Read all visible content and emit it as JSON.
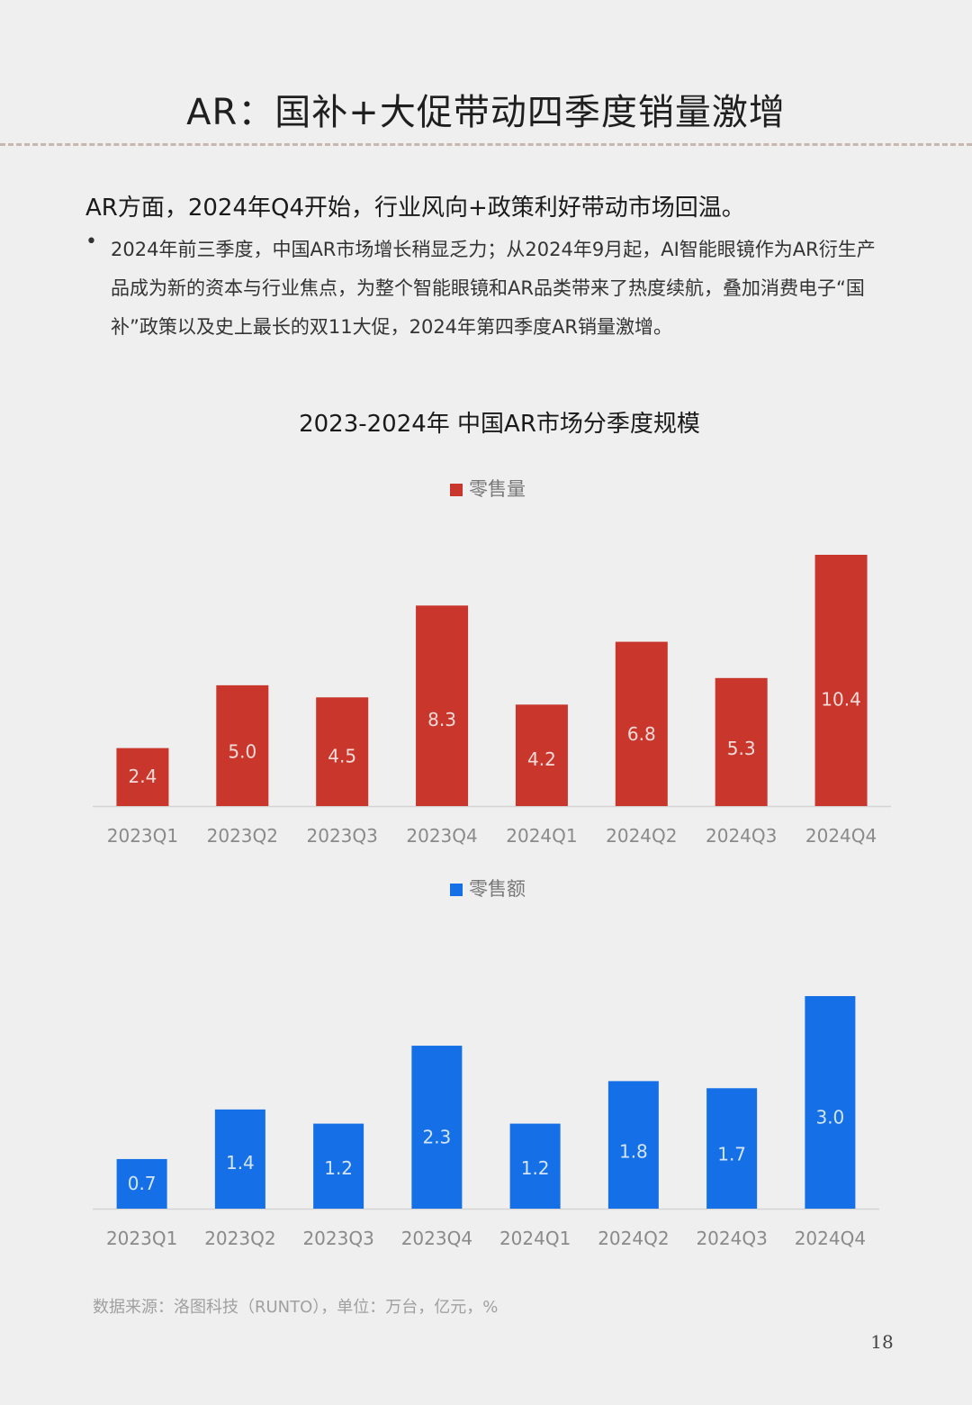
{
  "page": {
    "title": "AR：国补+大促带动四季度销量激增",
    "headline": "AR方面，2024年Q4开始，行业风向+政策利好带动市场回温。",
    "bullet_marker": "•",
    "bullet": "2024年前三季度，中国AR市场增长稍显乏力；从2024年9月起，AI智能眼镜作为AR衍生产品成为新的资本与行业焦点，为整个智能眼镜和AR品类带来了热度续航，叠加消费电子“国补”政策以及史上最长的双11大促，2024年第四季度AR销量激增。",
    "chart_title": "2023-2024年 中国AR市场分季度规模",
    "source": "数据来源：洛图科技（RUNTO），单位：万台，亿元，%",
    "page_number": "18"
  },
  "chart_data": [
    {
      "type": "bar",
      "categories": [
        "2023Q1",
        "2023Q2",
        "2023Q3",
        "2023Q4",
        "2024Q1",
        "2024Q2",
        "2024Q3",
        "2024Q4"
      ],
      "series": [
        {
          "name": "零售量",
          "values": [
            2.4,
            5.0,
            4.5,
            8.3,
            4.2,
            6.8,
            5.3,
            10.4
          ],
          "labels": [
            "2.4",
            "5.0",
            "4.5",
            "8.3",
            "4.2",
            "6.8",
            "5.3",
            "10.4"
          ]
        }
      ],
      "color": "#c9372c",
      "legend": "top-center",
      "ylim": [
        0,
        10.4
      ],
      "grid": false
    },
    {
      "type": "bar",
      "categories": [
        "2023Q1",
        "2023Q2",
        "2023Q3",
        "2023Q4",
        "2024Q1",
        "2024Q2",
        "2024Q3",
        "2024Q4"
      ],
      "series": [
        {
          "name": "零售额",
          "values": [
            0.7,
            1.4,
            1.2,
            2.3,
            1.2,
            1.8,
            1.7,
            3.0
          ],
          "labels": [
            "0.7",
            "1.4",
            "1.2",
            "2.3",
            "1.2",
            "1.8",
            "1.7",
            "3.0"
          ]
        }
      ],
      "color": "#1570e8",
      "legend": "top-center",
      "ylim": [
        0,
        3.0
      ],
      "grid": false
    }
  ]
}
